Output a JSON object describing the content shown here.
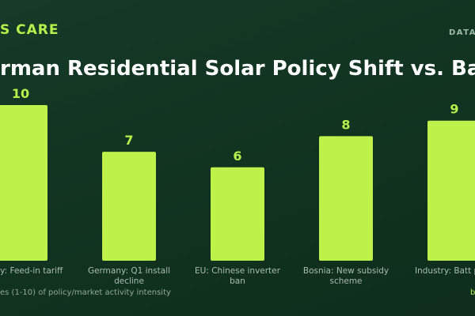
{
  "chart_data": {
    "type": "bar",
    "brand": "S CARE",
    "tag": "DATA",
    "title": "rman Residential Solar Policy Shift vs. Ba",
    "categories": [
      "rmany: Feed-in tariff",
      "Germany: Q1 install decline",
      "EU: Chinese inverter ban",
      "Bosnia: New subsidy scheme",
      "Industry: Batt push"
    ],
    "values": [
      10,
      7,
      6,
      8,
      9
    ],
    "color": "#bef24a",
    "note": "es (1-10) of policy/market activity intensity",
    "source": "b"
  }
}
